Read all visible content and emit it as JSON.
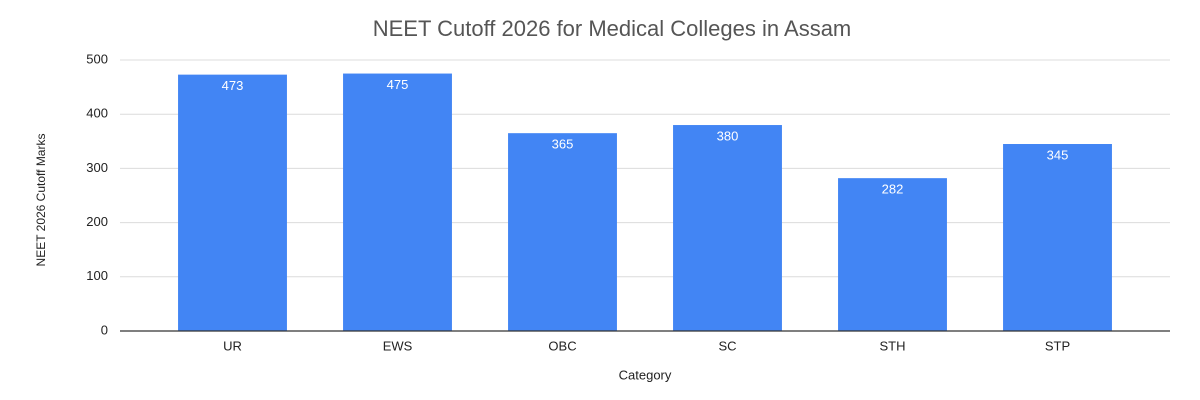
{
  "chart_data": {
    "type": "bar",
    "title": "NEET Cutoff 2026 for Medical Colleges in Assam",
    "x_label": "Category",
    "y_label": "NEET 2026 Cutoff Marks",
    "categories": [
      "UR",
      "EWS",
      "OBC",
      "SC",
      "STH",
      "STP"
    ],
    "values": [
      473,
      475,
      365,
      380,
      282,
      345
    ],
    "color": "#4285f4",
    "ylim": [
      0,
      500
    ],
    "yticks": [
      0,
      100,
      200,
      300,
      400,
      500
    ],
    "grid": true,
    "data_labels": true
  }
}
